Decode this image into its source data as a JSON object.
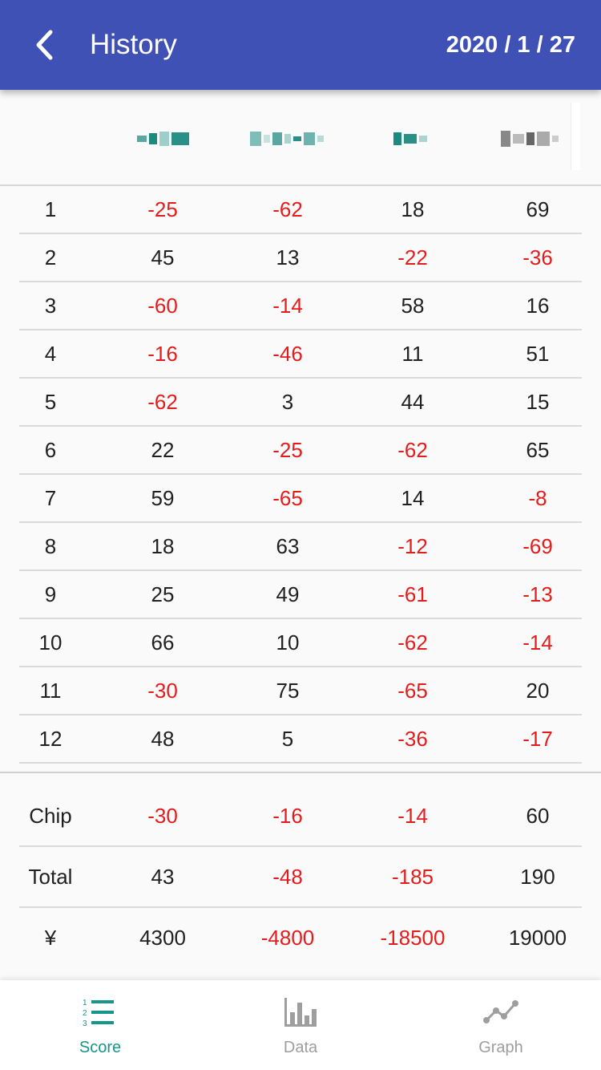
{
  "appbar": {
    "title": "History",
    "date": "2020 / 1 / 27",
    "background_color": "#3f51b5"
  },
  "players": [
    {
      "name_visible": false,
      "color": "#2a8f87"
    },
    {
      "name_visible": false,
      "color": "#3e9c95"
    },
    {
      "name_visible": false,
      "color": "#1d8a80"
    },
    {
      "name_visible": false,
      "color": "#777777"
    }
  ],
  "rounds": [
    {
      "no": "1",
      "scores": [
        "-25",
        "-62",
        "18",
        "69"
      ]
    },
    {
      "no": "2",
      "scores": [
        "45",
        "13",
        "-22",
        "-36"
      ]
    },
    {
      "no": "3",
      "scores": [
        "-60",
        "-14",
        "58",
        "16"
      ]
    },
    {
      "no": "4",
      "scores": [
        "-16",
        "-46",
        "11",
        "51"
      ]
    },
    {
      "no": "5",
      "scores": [
        "-62",
        "3",
        "44",
        "15"
      ]
    },
    {
      "no": "6",
      "scores": [
        "22",
        "-25",
        "-62",
        "65"
      ]
    },
    {
      "no": "7",
      "scores": [
        "59",
        "-65",
        "14",
        "-8"
      ]
    },
    {
      "no": "8",
      "scores": [
        "18",
        "63",
        "-12",
        "-69"
      ]
    },
    {
      "no": "9",
      "scores": [
        "25",
        "49",
        "-61",
        "-13"
      ]
    },
    {
      "no": "10",
      "scores": [
        "66",
        "10",
        "-62",
        "-14"
      ]
    },
    {
      "no": "11",
      "scores": [
        "-30",
        "75",
        "-65",
        "20"
      ]
    },
    {
      "no": "12",
      "scores": [
        "48",
        "5",
        "-36",
        "-17"
      ]
    }
  ],
  "summary": [
    {
      "label": "Chip",
      "values": [
        "-30",
        "-16",
        "-14",
        "60"
      ]
    },
    {
      "label": "Total",
      "values": [
        "43",
        "-48",
        "-185",
        "190"
      ]
    },
    {
      "label": "¥",
      "values": [
        "4300",
        "-4800",
        "-18500",
        "19000"
      ]
    }
  ],
  "colors": {
    "negative": "#e51c1c",
    "positive": "#212121",
    "accent": "#14968a",
    "inactive": "#9e9e9e"
  },
  "nav": [
    {
      "label": "Score",
      "icon": "numbered-list-icon",
      "active": true
    },
    {
      "label": "Data",
      "icon": "bar-chart-icon",
      "active": false
    },
    {
      "label": "Graph",
      "icon": "line-chart-icon",
      "active": false
    }
  ]
}
